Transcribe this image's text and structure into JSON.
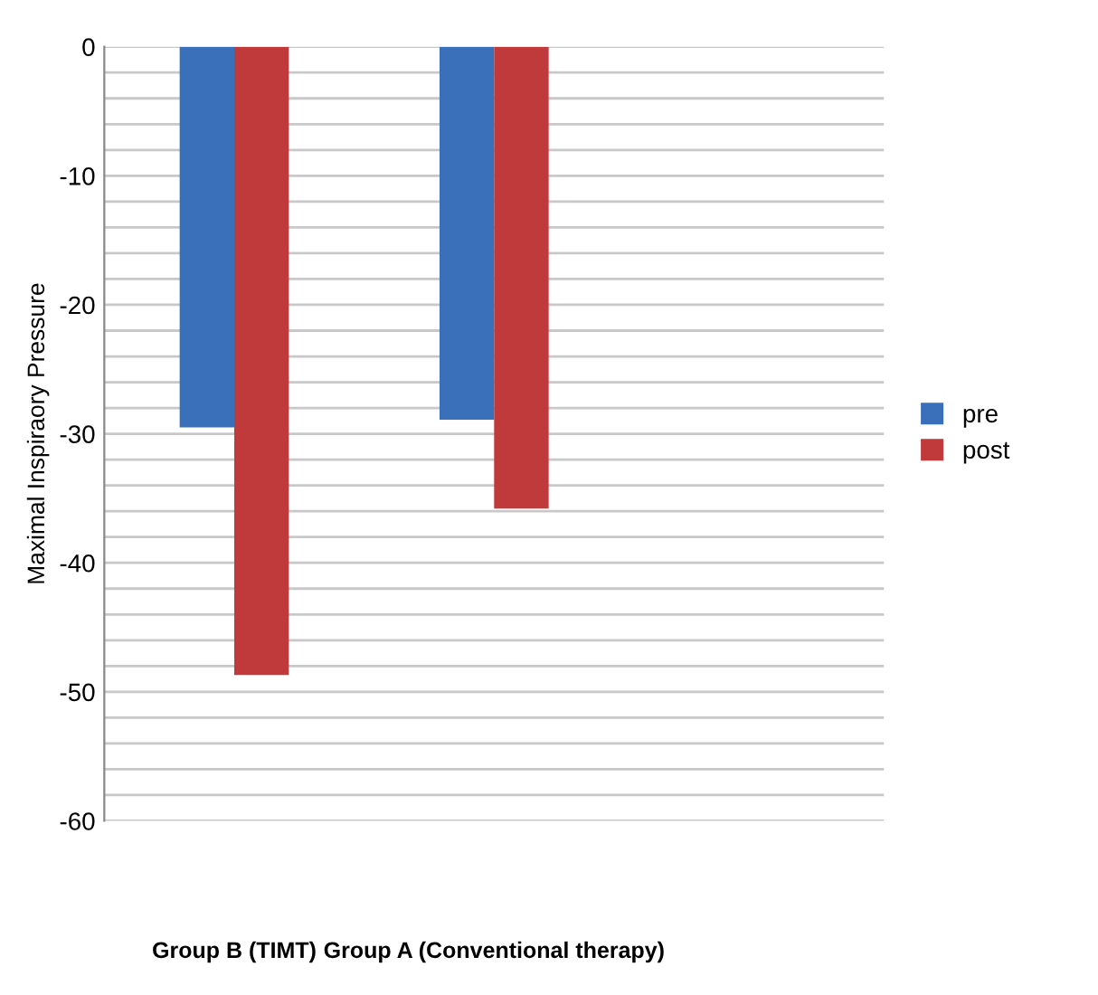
{
  "chart_data": {
    "type": "bar",
    "ylabel": "Maximal Inspiraory Pressure",
    "categories": [
      "Group B (TIMT)",
      "Group A (Conventional therapy)",
      null
    ],
    "series": [
      {
        "name": "pre",
        "color": "#3a6fba",
        "values": [
          -29.5,
          -28.9,
          null
        ]
      },
      {
        "name": "post",
        "color": "#c0393b",
        "values": [
          -48.7,
          -35.8,
          null
        ]
      }
    ],
    "ylim": [
      -60,
      0
    ],
    "yticks": [
      0,
      {
        "value": -2,
        "label": null
      },
      {
        "value": -4,
        "label": null
      },
      {
        "value": -6,
        "label": null
      },
      {
        "value": -8,
        "label": null
      },
      -10,
      {
        "value": -12,
        "label": null
      },
      {
        "value": -14,
        "label": null
      },
      {
        "value": -16,
        "label": null
      },
      {
        "value": -18,
        "label": null
      },
      -20,
      {
        "value": -22,
        "label": null
      },
      {
        "value": -24,
        "label": null
      },
      {
        "value": -26,
        "label": null
      },
      {
        "value": -28,
        "label": null
      },
      -30,
      {
        "value": -32,
        "label": null
      },
      {
        "value": -34,
        "label": null
      },
      {
        "value": -36,
        "label": null
      },
      {
        "value": -38,
        "label": null
      },
      -40,
      {
        "value": -42,
        "label": null
      },
      {
        "value": -44,
        "label": null
      },
      {
        "value": -46,
        "label": null
      },
      {
        "value": -48,
        "label": null
      },
      -50,
      {
        "value": -52,
        "label": null
      },
      {
        "value": -54,
        "label": null
      },
      {
        "value": -56,
        "label": null
      },
      {
        "value": -58,
        "label": null
      },
      -60
    ],
    "grid": "y",
    "legend": "right"
  }
}
